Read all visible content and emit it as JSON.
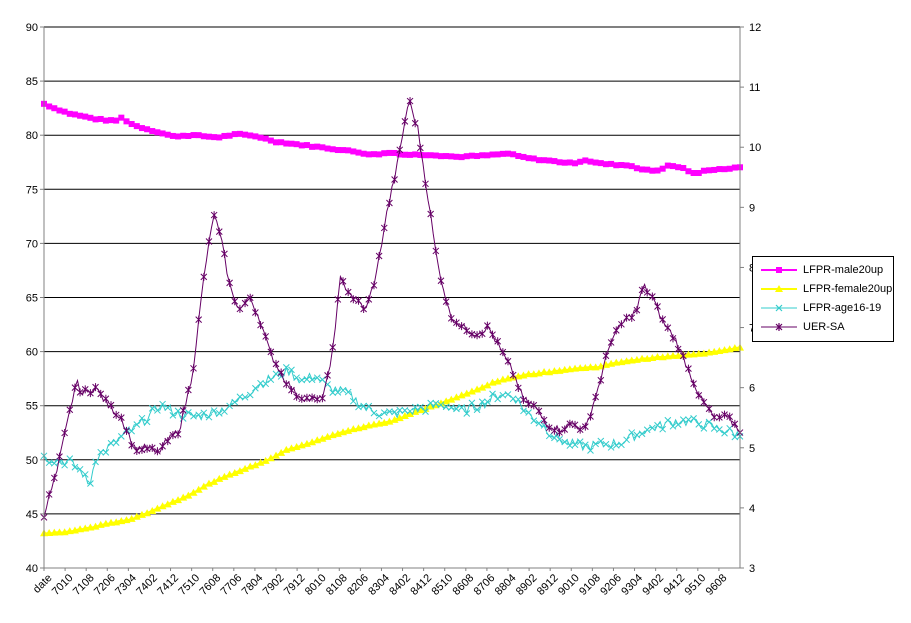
{
  "chart_data": {
    "type": "line",
    "title": "",
    "xlabel": "",
    "ylabel": "",
    "y_left_range": [
      40,
      90
    ],
    "y_left_ticks": [
      40,
      45,
      50,
      55,
      60,
      65,
      70,
      75,
      80,
      85,
      90
    ],
    "y_right_range": [
      3,
      12
    ],
    "y_right_ticks": [
      3,
      4,
      5,
      6,
      7,
      8,
      9,
      10,
      11,
      12
    ],
    "x_tick_labels": [
      "date",
      "7010",
      "7108",
      "7206",
      "7304",
      "7402",
      "7412",
      "7510",
      "7608",
      "7706",
      "7804",
      "7902",
      "7912",
      "8010",
      "8108",
      "8206",
      "8304",
      "8402",
      "8412",
      "8510",
      "8608",
      "8706",
      "8804",
      "8902",
      "8912",
      "9010",
      "9108",
      "9206",
      "9304",
      "9402",
      "9412",
      "9510",
      "9608"
    ],
    "grid": "horizontal major gridlines",
    "legend_position": "right",
    "series": [
      {
        "name": "LFPR-male20up",
        "axis": "left",
        "color": "#ff00ff",
        "marker": "square",
        "anchors": [
          [
            0,
            82.9
          ],
          [
            8,
            82.5
          ],
          [
            20,
            82.0
          ],
          [
            40,
            81.5
          ],
          [
            55,
            81.3
          ],
          [
            60,
            81.6
          ],
          [
            70,
            80.9
          ],
          [
            85,
            80.4
          ],
          [
            100,
            79.9
          ],
          [
            115,
            80.0
          ],
          [
            135,
            79.8
          ],
          [
            150,
            80.1
          ],
          [
            165,
            79.9
          ],
          [
            180,
            79.4
          ],
          [
            200,
            79.1
          ],
          [
            220,
            78.8
          ],
          [
            240,
            78.5
          ],
          [
            255,
            78.2
          ],
          [
            270,
            78.4
          ],
          [
            280,
            78.2
          ],
          [
            300,
            78.2
          ],
          [
            320,
            78.0
          ],
          [
            340,
            78.1
          ],
          [
            360,
            78.3
          ],
          [
            370,
            78.0
          ],
          [
            380,
            77.8
          ],
          [
            395,
            77.6
          ],
          [
            410,
            77.4
          ],
          [
            420,
            77.7
          ],
          [
            430,
            77.4
          ],
          [
            440,
            77.3
          ],
          [
            455,
            77.2
          ],
          [
            465,
            76.8
          ],
          [
            475,
            76.7
          ],
          [
            485,
            77.2
          ],
          [
            495,
            77.0
          ],
          [
            505,
            76.4
          ],
          [
            515,
            76.8
          ],
          [
            530,
            76.9
          ],
          [
            540,
            77.0
          ]
        ]
      },
      {
        "name": "LFPR-female20up",
        "axis": "left",
        "color": "#ffff00",
        "marker": "triangle",
        "anchors": [
          [
            0,
            43.2
          ],
          [
            15,
            43.3
          ],
          [
            30,
            43.6
          ],
          [
            50,
            44.1
          ],
          [
            70,
            44.6
          ],
          [
            90,
            45.6
          ],
          [
            110,
            46.6
          ],
          [
            130,
            47.9
          ],
          [
            150,
            48.9
          ],
          [
            170,
            49.8
          ],
          [
            190,
            51.0
          ],
          [
            210,
            51.7
          ],
          [
            230,
            52.5
          ],
          [
            250,
            53.1
          ],
          [
            270,
            53.6
          ],
          [
            290,
            54.5
          ],
          [
            310,
            55.3
          ],
          [
            330,
            56.2
          ],
          [
            350,
            57.2
          ],
          [
            370,
            57.8
          ],
          [
            390,
            58.1
          ],
          [
            410,
            58.4
          ],
          [
            430,
            58.6
          ],
          [
            450,
            59.1
          ],
          [
            470,
            59.4
          ],
          [
            490,
            59.6
          ],
          [
            510,
            59.8
          ],
          [
            530,
            60.2
          ],
          [
            540,
            60.4
          ]
        ]
      },
      {
        "name": "LFPR-age16-19",
        "axis": "left",
        "color": "#33cccc",
        "marker": "x",
        "anchors": [
          [
            0,
            50.2
          ],
          [
            10,
            50.0
          ],
          [
            20,
            49.8
          ],
          [
            30,
            48.8
          ],
          [
            35,
            47.5
          ],
          [
            40,
            50.2
          ],
          [
            60,
            52.1
          ],
          [
            75,
            53.3
          ],
          [
            90,
            55.0
          ],
          [
            105,
            54.2
          ],
          [
            120,
            54.0
          ],
          [
            135,
            54.5
          ],
          [
            150,
            55.4
          ],
          [
            165,
            56.8
          ],
          [
            180,
            57.8
          ],
          [
            190,
            58.2
          ],
          [
            200,
            57.3
          ],
          [
            210,
            57.8
          ],
          [
            220,
            56.7
          ],
          [
            235,
            56.2
          ],
          [
            250,
            54.7
          ],
          [
            265,
            54.2
          ],
          [
            280,
            54.3
          ],
          [
            295,
            54.8
          ],
          [
            310,
            55.0
          ],
          [
            325,
            54.6
          ],
          [
            340,
            55.1
          ],
          [
            355,
            56.2
          ],
          [
            365,
            55.8
          ],
          [
            375,
            54.3
          ],
          [
            385,
            53.4
          ],
          [
            395,
            52.3
          ],
          [
            405,
            51.6
          ],
          [
            420,
            51.2
          ],
          [
            435,
            51.4
          ],
          [
            450,
            51.7
          ],
          [
            465,
            52.7
          ],
          [
            480,
            53.2
          ],
          [
            490,
            53.6
          ],
          [
            500,
            53.5
          ],
          [
            515,
            53.2
          ],
          [
            525,
            52.8
          ],
          [
            540,
            52.3
          ]
        ]
      },
      {
        "name": "UER-SA",
        "axis": "right",
        "color": "#660066",
        "marker": "star",
        "anchors": [
          [
            0,
            3.9
          ],
          [
            10,
            4.6
          ],
          [
            20,
            5.6
          ],
          [
            25,
            6.1
          ],
          [
            30,
            5.9
          ],
          [
            40,
            6.0
          ],
          [
            50,
            5.7
          ],
          [
            60,
            5.5
          ],
          [
            70,
            5.0
          ],
          [
            80,
            5.0
          ],
          [
            88,
            4.9
          ],
          [
            95,
            5.1
          ],
          [
            105,
            5.3
          ],
          [
            115,
            6.2
          ],
          [
            125,
            8.0
          ],
          [
            132,
            8.9
          ],
          [
            138,
            8.4
          ],
          [
            145,
            7.6
          ],
          [
            152,
            7.3
          ],
          [
            160,
            7.5
          ],
          [
            168,
            7.1
          ],
          [
            175,
            6.6
          ],
          [
            185,
            6.2
          ],
          [
            195,
            5.9
          ],
          [
            205,
            5.8
          ],
          [
            215,
            5.8
          ],
          [
            222,
            6.3
          ],
          [
            230,
            7.8
          ],
          [
            240,
            7.5
          ],
          [
            250,
            7.3
          ],
          [
            258,
            7.9
          ],
          [
            265,
            8.8
          ],
          [
            275,
            9.8
          ],
          [
            283,
            10.8
          ],
          [
            290,
            10.3
          ],
          [
            295,
            9.6
          ],
          [
            305,
            8.1
          ],
          [
            315,
            7.2
          ],
          [
            325,
            7.0
          ],
          [
            335,
            6.9
          ],
          [
            345,
            7.0
          ],
          [
            355,
            6.6
          ],
          [
            365,
            6.2
          ],
          [
            372,
            5.8
          ],
          [
            380,
            5.7
          ],
          [
            390,
            5.4
          ],
          [
            400,
            5.3
          ],
          [
            410,
            5.4
          ],
          [
            420,
            5.3
          ],
          [
            430,
            6.0
          ],
          [
            440,
            6.8
          ],
          [
            450,
            7.1
          ],
          [
            460,
            7.3
          ],
          [
            465,
            7.7
          ],
          [
            472,
            7.5
          ],
          [
            480,
            7.1
          ],
          [
            490,
            6.8
          ],
          [
            500,
            6.3
          ],
          [
            510,
            5.8
          ],
          [
            520,
            5.5
          ],
          [
            530,
            5.5
          ],
          [
            540,
            5.3
          ]
        ]
      }
    ]
  }
}
